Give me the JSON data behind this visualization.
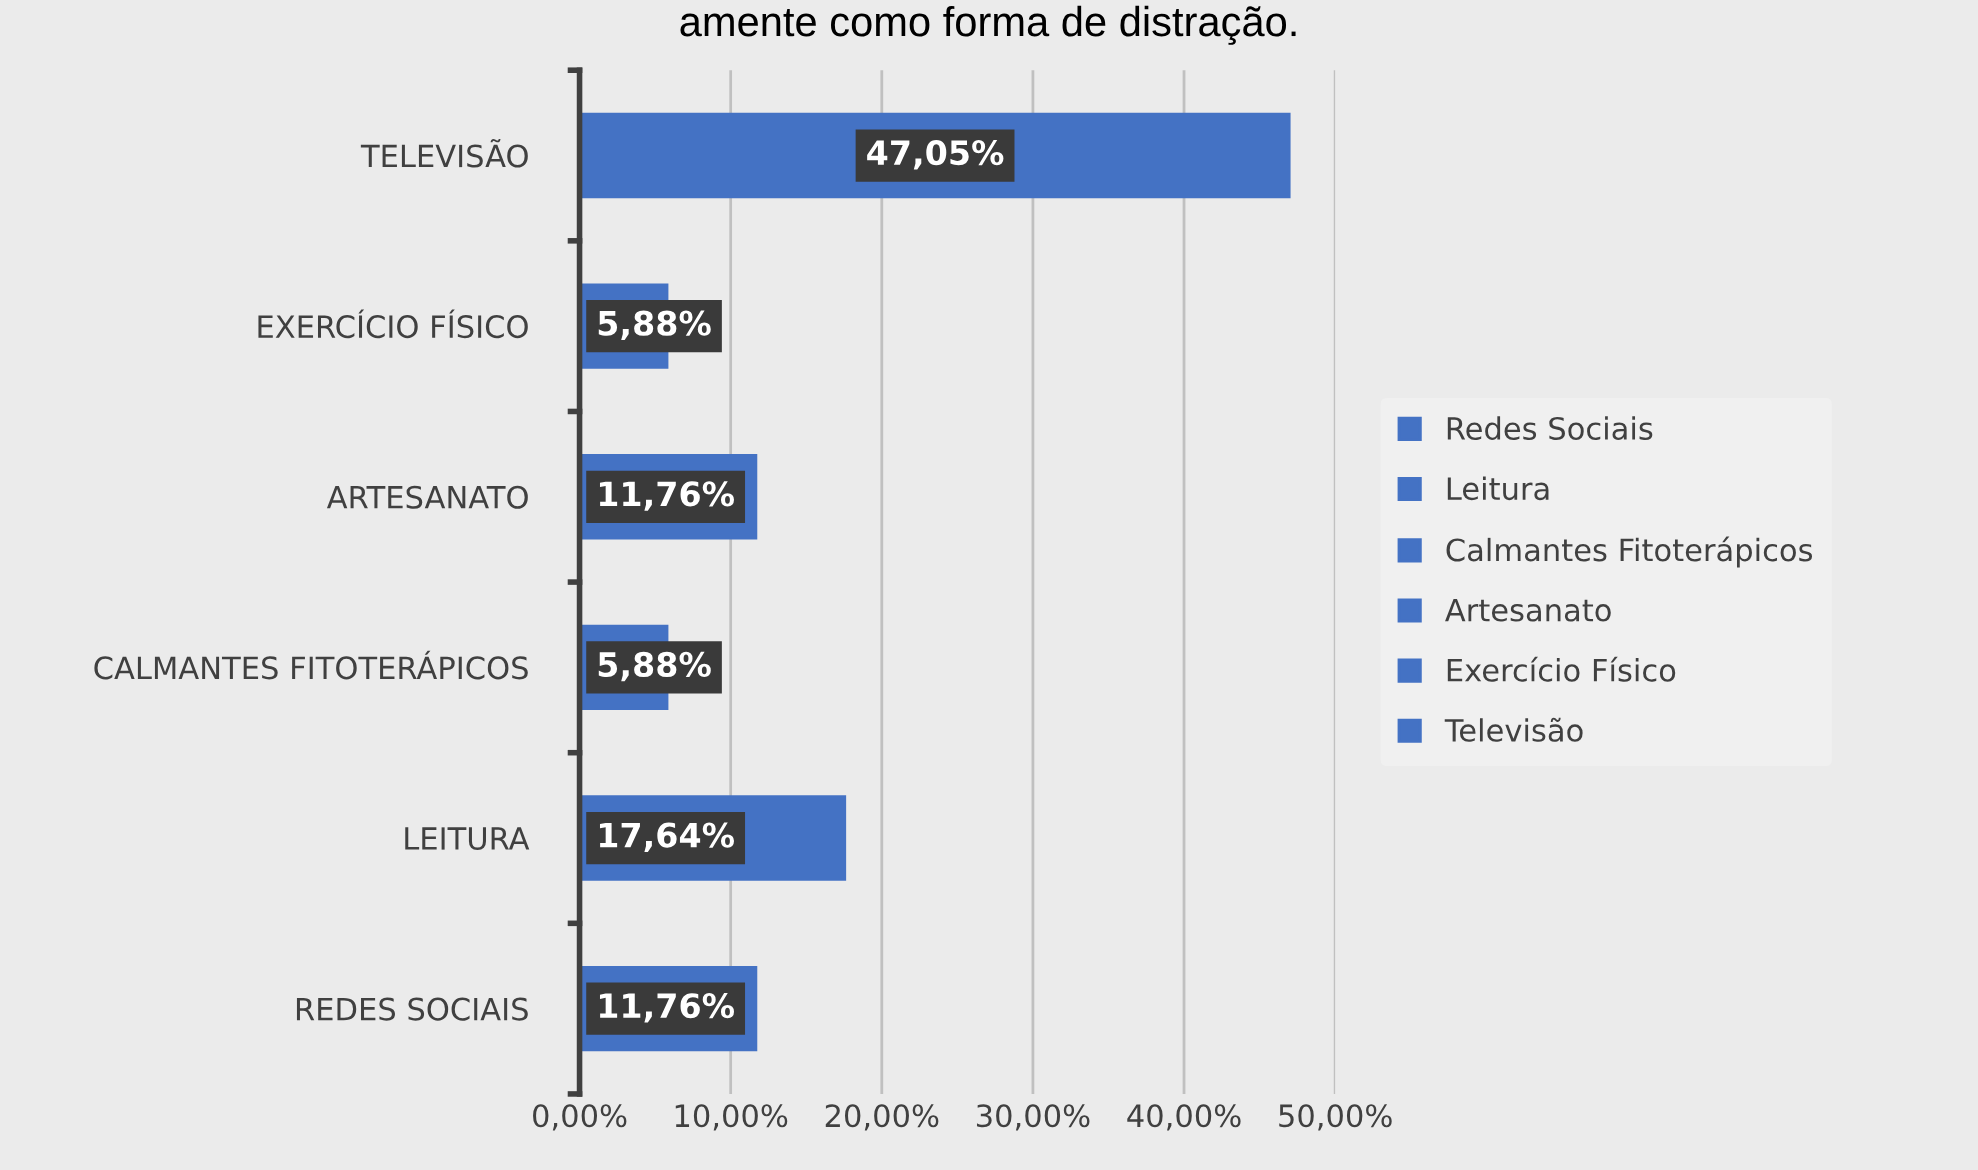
{
  "chart_data": {
    "type": "bar",
    "orientation": "horizontal",
    "title": "amente como forma de distração.",
    "categories": [
      "TELEVISÃO",
      "EXERCÍCIO FÍSICO",
      "ARTESANATO",
      "CALMANTES FITOTERÁPICOS",
      "LEITURA",
      "REDES SOCIAIS"
    ],
    "series": [
      {
        "name": "Redes Sociais",
        "color": "#4472c4",
        "values": [
          null,
          null,
          null,
          null,
          null,
          11.76
        ],
        "value_labels": [
          null,
          null,
          null,
          null,
          null,
          "11,76%"
        ]
      },
      {
        "name": "Leitura",
        "color": "#4472c4",
        "values": [
          null,
          null,
          null,
          null,
          17.64,
          null
        ],
        "value_labels": [
          null,
          null,
          null,
          null,
          "17,64%",
          null
        ]
      },
      {
        "name": "Calmantes Fitoterápicos",
        "color": "#4472c4",
        "values": [
          null,
          null,
          null,
          5.88,
          null,
          null
        ],
        "value_labels": [
          null,
          null,
          null,
          "5,88%",
          null,
          null
        ]
      },
      {
        "name": "Artesanato",
        "color": "#4472c4",
        "values": [
          null,
          null,
          11.76,
          null,
          null,
          null
        ],
        "value_labels": [
          null,
          null,
          "11,76%",
          null,
          null,
          null
        ]
      },
      {
        "name": "Exercício Físico",
        "color": "#4472c4",
        "values": [
          null,
          5.88,
          null,
          null,
          null,
          null
        ],
        "value_labels": [
          null,
          "5,88%",
          null,
          null,
          null,
          null
        ]
      },
      {
        "name": "Televisão",
        "color": "#4472c4",
        "values": [
          47.05,
          null,
          null,
          null,
          null,
          null
        ],
        "value_labels": [
          "47,05%",
          null,
          null,
          null,
          null,
          null
        ]
      }
    ],
    "xlim": [
      0,
      50
    ],
    "xticks": [
      {
        "value": 0,
        "label": "0,00%"
      },
      {
        "value": 10,
        "label": "10,00%"
      },
      {
        "value": 20,
        "label": "20,00%"
      },
      {
        "value": 30,
        "label": "30,00%"
      },
      {
        "value": 40,
        "label": "40,00%"
      },
      {
        "value": 50,
        "label": "50,00%"
      }
    ],
    "grid": "x",
    "legend": "right"
  }
}
